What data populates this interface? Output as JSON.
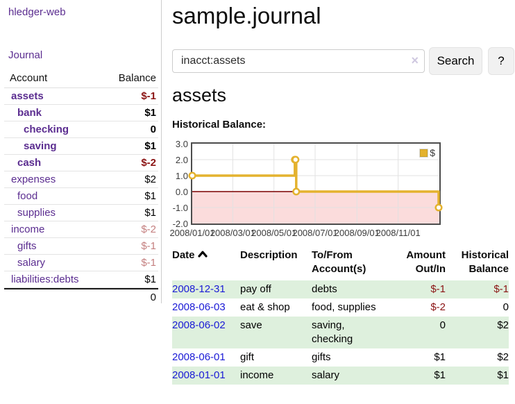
{
  "brand": "hledger-web",
  "sidebar": {
    "journal_link": "Journal",
    "accounts": {
      "header_account": "Account",
      "header_balance": "Balance",
      "rows": [
        {
          "name": "assets",
          "balance": "$-1",
          "level": 0,
          "bold": true,
          "tone": "neg-strong",
          "link": "purple"
        },
        {
          "name": "bank",
          "balance": "$1",
          "level": 1,
          "bold": true,
          "tone": "normal",
          "link": "purple"
        },
        {
          "name": "checking",
          "balance": "0",
          "level": 2,
          "bold": true,
          "tone": "normal",
          "link": "purple"
        },
        {
          "name": "saving",
          "balance": "$1",
          "level": 2,
          "bold": true,
          "tone": "normal",
          "link": "purple"
        },
        {
          "name": "cash",
          "balance": "$-2",
          "level": 1,
          "bold": true,
          "tone": "neg-strong",
          "link": "purple"
        },
        {
          "name": "expenses",
          "balance": "$2",
          "level": 0,
          "bold": false,
          "tone": "normal",
          "link": "purple"
        },
        {
          "name": "food",
          "balance": "$1",
          "level": 1,
          "bold": false,
          "tone": "normal",
          "link": "purple"
        },
        {
          "name": "supplies",
          "balance": "$1",
          "level": 1,
          "bold": false,
          "tone": "normal",
          "link": "purple"
        },
        {
          "name": "income",
          "balance": "$-2",
          "level": 0,
          "bold": false,
          "tone": "neg-muted",
          "link": "purple"
        },
        {
          "name": "gifts",
          "balance": "$-1",
          "level": 1,
          "bold": false,
          "tone": "neg-muted",
          "link": "purple"
        },
        {
          "name": "salary",
          "balance": "$-1",
          "level": 1,
          "bold": false,
          "tone": "neg-muted",
          "link": "blue"
        },
        {
          "name": "liabilities:debts",
          "balance": "$1",
          "level": 0,
          "bold": false,
          "tone": "normal",
          "link": "purple"
        }
      ],
      "total": "0"
    }
  },
  "header": {
    "title": "sample.journal"
  },
  "search": {
    "value": "inacct:assets",
    "clear_icon": "×",
    "search_button": "Search",
    "help_button": "?"
  },
  "account_view": {
    "heading": "assets",
    "section_label": "Historical Balance:"
  },
  "chart_data": {
    "type": "line",
    "step": "after",
    "title": "Historical Balance:",
    "series": [
      {
        "name": "$",
        "color": "#e4b22e",
        "points": [
          {
            "x": "2008-01-01",
            "y": 1.0
          },
          {
            "x": "2008-06-01",
            "y": 2.0
          },
          {
            "x": "2008-06-02",
            "y": 2.0
          },
          {
            "x": "2008-06-03",
            "y": 0.0
          },
          {
            "x": "2008-12-31",
            "y": -1.0
          }
        ]
      }
    ],
    "xlim": [
      "2008-01-01",
      "2009-01-01"
    ],
    "ylim": [
      -2.0,
      3.0
    ],
    "yticks": [
      3.0,
      2.0,
      1.0,
      0.0,
      -1.0,
      -2.0
    ],
    "xticks": [
      {
        "label": "2008/01/01",
        "date": "2008-01-01"
      },
      {
        "label": "2008/03/01",
        "date": "2008-03-01"
      },
      {
        "label": "2008/05/01",
        "date": "2008-05-01"
      },
      {
        "label": "2008/07/01",
        "date": "2008-07-01"
      },
      {
        "label": "2008/09/01",
        "date": "2008-09-01"
      },
      {
        "label": "2008/11/01",
        "date": "2008-11-01"
      }
    ],
    "grid": true,
    "negative_region_highlight": true,
    "legend": {
      "label": "$",
      "position": "top-right"
    }
  },
  "register": {
    "headers": {
      "date": "Date",
      "description": "Description",
      "tofrom": "To/From\nAccount(s)",
      "amount": "Amount\nOut/In",
      "balance": "Historical\nBalance"
    },
    "rows": [
      {
        "date": "2008-12-31",
        "description": "pay off",
        "accounts": "debts",
        "amount": "$-1",
        "balance": "$-1",
        "amount_negative": true,
        "balance_negative": true
      },
      {
        "date": "2008-06-03",
        "description": "eat & shop",
        "accounts": "food, supplies",
        "amount": "$-2",
        "balance": "0",
        "amount_negative": true,
        "balance_negative": false
      },
      {
        "date": "2008-06-02",
        "description": "save",
        "accounts": "saving,\nchecking",
        "amount": "0",
        "balance": "$2",
        "amount_negative": false,
        "balance_negative": false
      },
      {
        "date": "2008-06-01",
        "description": "gift",
        "accounts": "gifts",
        "amount": "$1",
        "balance": "$2",
        "amount_negative": false,
        "balance_negative": false
      },
      {
        "date": "2008-01-01",
        "description": "income",
        "accounts": "salary",
        "amount": "$1",
        "balance": "$1",
        "amount_negative": false,
        "balance_negative": false
      }
    ]
  },
  "colors": {
    "purple_link": "#5b2d90",
    "blue_link": "#1a1ad6",
    "neg_strong": "#8b1414",
    "neg_muted": "#c47f7f",
    "stripe_green": "#def0dd",
    "gold": "#e4b22e",
    "pink": "#fbdcdc",
    "zero_red": "#7a0000",
    "gridline": "#e2e2e2"
  }
}
